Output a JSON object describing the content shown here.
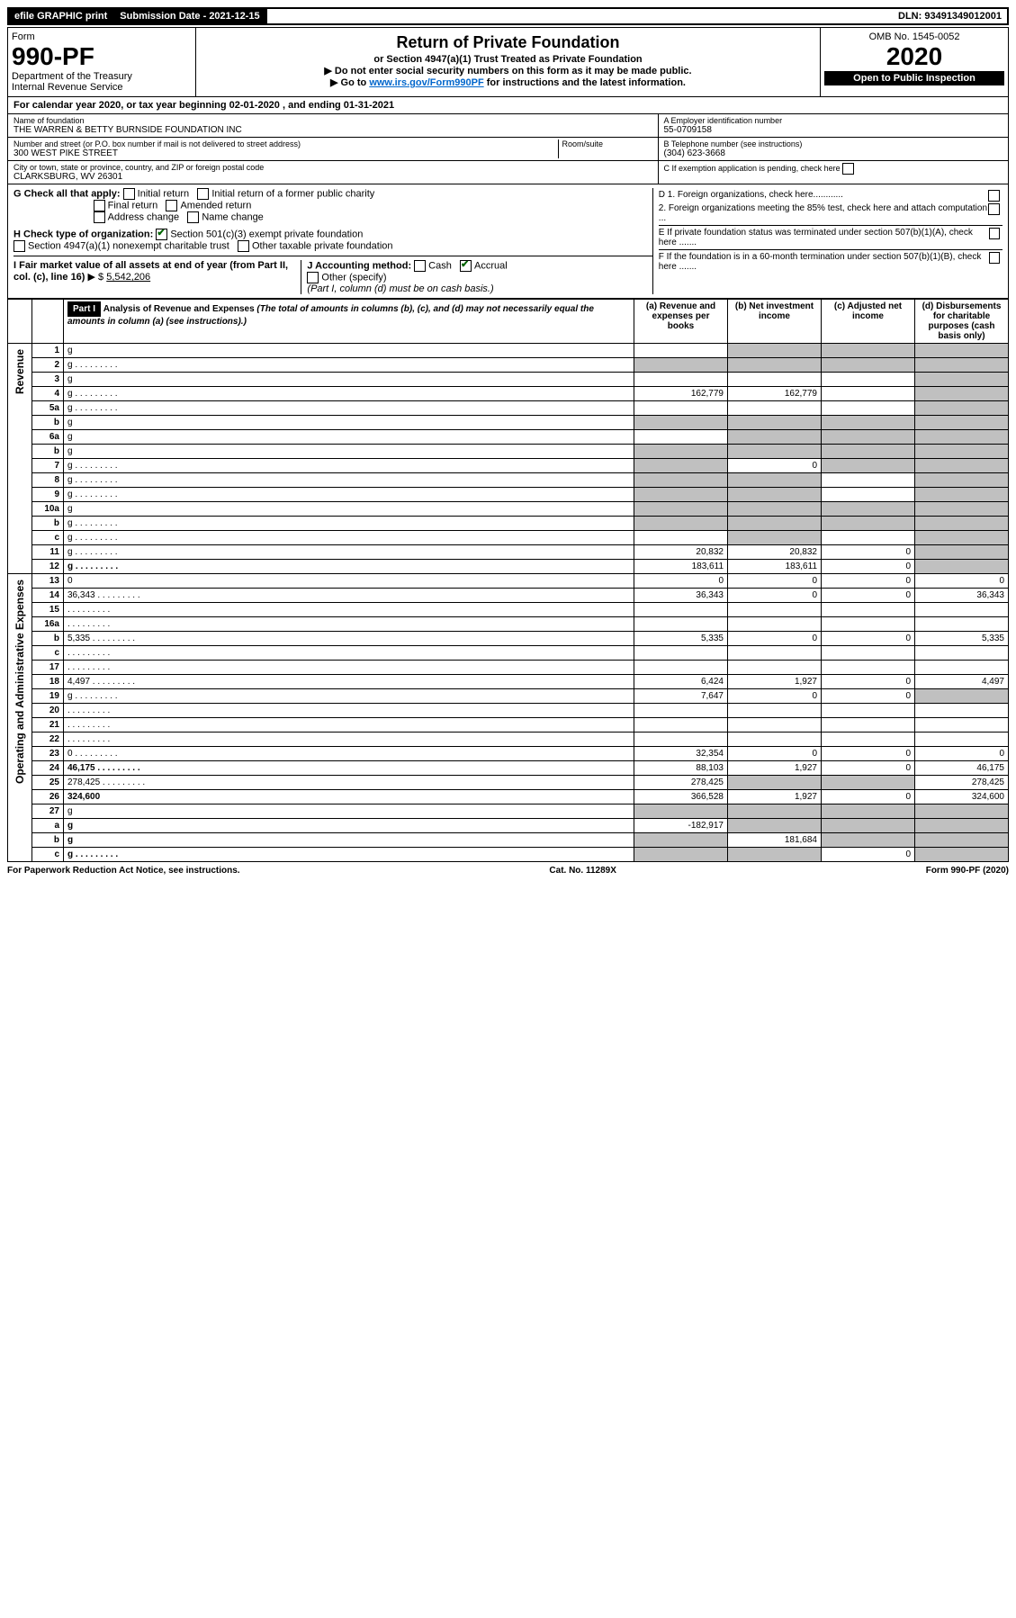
{
  "topbar": {
    "efile": "efile GRAPHIC print",
    "sub_date_label": "Submission Date - 2021-12-15",
    "dln": "DLN: 93491349012001"
  },
  "header": {
    "form_label": "Form",
    "form_number": "990-PF",
    "dept": "Department of the Treasury",
    "irs": "Internal Revenue Service",
    "title": "Return of Private Foundation",
    "subtitle": "or Section 4947(a)(1) Trust Treated as Private Foundation",
    "note1": "▶ Do not enter social security numbers on this form as it may be made public.",
    "note2_pre": "▶ Go to ",
    "note2_link": "www.irs.gov/Form990PF",
    "note2_post": " for instructions and the latest information.",
    "omb": "OMB No. 1545-0052",
    "year": "2020",
    "open": "Open to Public Inspection"
  },
  "cal_year": "For calendar year 2020, or tax year beginning 02-01-2020            , and ending 01-31-2021",
  "foundation": {
    "name_lbl": "Name of foundation",
    "name": "THE WARREN & BETTY BURNSIDE FOUNDATION INC",
    "addr_lbl": "Number and street (or P.O. box number if mail is not delivered to street address)",
    "addr": "300 WEST PIKE STREET",
    "room_lbl": "Room/suite",
    "city_lbl": "City or town, state or province, country, and ZIP or foreign postal code",
    "city": "CLARKSBURG, WV  26301",
    "ein_lbl": "A Employer identification number",
    "ein": "55-0709158",
    "tel_lbl": "B Telephone number (see instructions)",
    "tel": "(304) 623-3668",
    "c_lbl": "C If exemption application is pending, check here",
    "d1": "D 1. Foreign organizations, check here............",
    "d2": "2. Foreign organizations meeting the 85% test, check here and attach computation ...",
    "e": "E  If private foundation status was terminated under section 507(b)(1)(A), check here .......",
    "f": "F  If the foundation is in a 60-month termination under section 507(b)(1)(B), check here .......",
    "g_lbl": "G Check all that apply:",
    "g_opts": [
      "Initial return",
      "Initial return of a former public charity",
      "Final return",
      "Amended return",
      "Address change",
      "Name change"
    ],
    "h_lbl": "H Check type of organization:",
    "h1": "Section 501(c)(3) exempt private foundation",
    "h2": "Section 4947(a)(1) nonexempt charitable trust",
    "h3": "Other taxable private foundation",
    "i_lbl": "I Fair market value of all assets at end of year (from Part II, col. (c), line 16)",
    "i_val": "5,542,206",
    "j_lbl": "J Accounting method:",
    "j_cash": "Cash",
    "j_accrual": "Accrual",
    "j_other": "Other (specify)",
    "j_note": "(Part I, column (d) must be on cash basis.)"
  },
  "part1": {
    "label": "Part I",
    "title": "Analysis of Revenue and Expenses",
    "title_note": "(The total of amounts in columns (b), (c), and (d) may not necessarily equal the amounts in column (a) (see instructions).)",
    "col_a": "(a) Revenue and expenses per books",
    "col_b": "(b) Net investment income",
    "col_c": "(c) Adjusted net income",
    "col_d": "(d) Disbursements for charitable purposes (cash basis only)",
    "side_rev": "Revenue",
    "side_exp": "Operating and Administrative Expenses",
    "rows": [
      {
        "n": "1",
        "d": "g",
        "a": "",
        "b": "g",
        "c": "g"
      },
      {
        "n": "2",
        "d": "g",
        "dots": true,
        "a": "g",
        "b": "g",
        "c": "g"
      },
      {
        "n": "3",
        "d": "g",
        "a": "",
        "b": "",
        "c": ""
      },
      {
        "n": "4",
        "d": "g",
        "dots": true,
        "a": "162,779",
        "b": "162,779",
        "c": ""
      },
      {
        "n": "5a",
        "d": "g",
        "dots": true,
        "a": "",
        "b": "",
        "c": ""
      },
      {
        "n": "b",
        "d": "g",
        "a": "g",
        "b": "g",
        "c": "g"
      },
      {
        "n": "6a",
        "d": "g",
        "a": "",
        "b": "g",
        "c": "g"
      },
      {
        "n": "b",
        "d": "g",
        "a": "g",
        "b": "g",
        "c": "g"
      },
      {
        "n": "7",
        "d": "g",
        "dots": true,
        "a": "g",
        "b": "0",
        "c": "g"
      },
      {
        "n": "8",
        "d": "g",
        "dots": true,
        "a": "g",
        "b": "g",
        "c": ""
      },
      {
        "n": "9",
        "d": "g",
        "dots": true,
        "a": "g",
        "b": "g",
        "c": ""
      },
      {
        "n": "10a",
        "d": "g",
        "a": "g",
        "b": "g",
        "c": "g"
      },
      {
        "n": "b",
        "d": "g",
        "dots": true,
        "a": "g",
        "b": "g",
        "c": "g"
      },
      {
        "n": "c",
        "d": "g",
        "dots": true,
        "a": "",
        "b": "g",
        "c": ""
      },
      {
        "n": "11",
        "d": "g",
        "dots": true,
        "a": "20,832",
        "b": "20,832",
        "c": "0"
      },
      {
        "n": "12",
        "d": "g",
        "dots": true,
        "bold": true,
        "a": "183,611",
        "b": "183,611",
        "c": "0"
      },
      {
        "n": "13",
        "d": "0",
        "a": "0",
        "b": "0",
        "c": "0"
      },
      {
        "n": "14",
        "d": "36,343",
        "dots": true,
        "a": "36,343",
        "b": "0",
        "c": "0"
      },
      {
        "n": "15",
        "d": "",
        "dots": true,
        "a": "",
        "b": "",
        "c": ""
      },
      {
        "n": "16a",
        "d": "",
        "dots": true,
        "a": "",
        "b": "",
        "c": ""
      },
      {
        "n": "b",
        "d": "5,335",
        "dots": true,
        "a": "5,335",
        "b": "0",
        "c": "0"
      },
      {
        "n": "c",
        "d": "",
        "dots": true,
        "a": "",
        "b": "",
        "c": ""
      },
      {
        "n": "17",
        "d": "",
        "dots": true,
        "a": "",
        "b": "",
        "c": ""
      },
      {
        "n": "18",
        "d": "4,497",
        "dots": true,
        "a": "6,424",
        "b": "1,927",
        "c": "0"
      },
      {
        "n": "19",
        "d": "g",
        "dots": true,
        "a": "7,647",
        "b": "0",
        "c": "0"
      },
      {
        "n": "20",
        "d": "",
        "dots": true,
        "a": "",
        "b": "",
        "c": ""
      },
      {
        "n": "21",
        "d": "",
        "dots": true,
        "a": "",
        "b": "",
        "c": ""
      },
      {
        "n": "22",
        "d": "",
        "dots": true,
        "a": "",
        "b": "",
        "c": ""
      },
      {
        "n": "23",
        "d": "0",
        "dots": true,
        "a": "32,354",
        "b": "0",
        "c": "0"
      },
      {
        "n": "24",
        "d": "46,175",
        "dots": true,
        "bold": true,
        "a": "88,103",
        "b": "1,927",
        "c": "0"
      },
      {
        "n": "25",
        "d": "278,425",
        "dots": true,
        "a": "278,425",
        "b": "g",
        "c": "g"
      },
      {
        "n": "26",
        "d": "324,600",
        "bold": true,
        "a": "366,528",
        "b": "1,927",
        "c": "0"
      },
      {
        "n": "27",
        "d": "g",
        "a": "g",
        "b": "g",
        "c": "g"
      },
      {
        "n": "a",
        "d": "g",
        "bold": true,
        "a": "-182,917",
        "b": "g",
        "c": "g"
      },
      {
        "n": "b",
        "d": "g",
        "bold": true,
        "a": "g",
        "b": "181,684",
        "c": "g"
      },
      {
        "n": "c",
        "d": "g",
        "dots": true,
        "bold": true,
        "a": "g",
        "b": "g",
        "c": "0"
      }
    ]
  },
  "footer": {
    "left": "For Paperwork Reduction Act Notice, see instructions.",
    "mid": "Cat. No. 11289X",
    "right": "Form 990-PF (2020)"
  }
}
